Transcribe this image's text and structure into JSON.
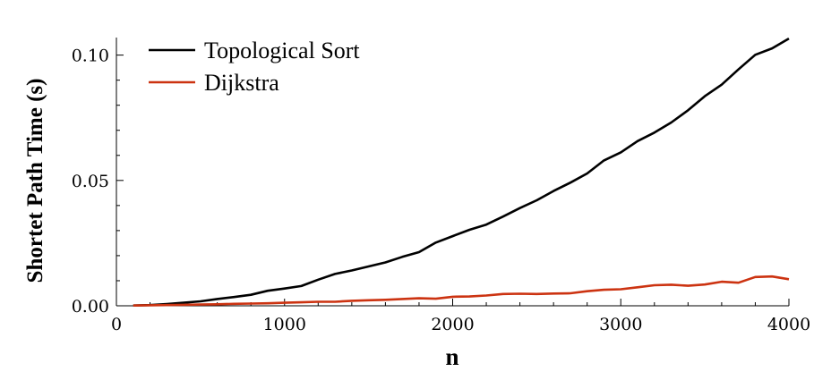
{
  "chart_data": {
    "type": "line",
    "xlabel": "n",
    "ylabel": "Shortet Path Time (s)",
    "xlim": [
      0,
      4000
    ],
    "ylim": [
      0,
      0.107
    ],
    "x_ticks": [
      0,
      1000,
      2000,
      3000,
      4000
    ],
    "x_tick_labels": [
      "0",
      "1000",
      "2000",
      "3000",
      "4000"
    ],
    "y_ticks": [
      0,
      0.05,
      0.1
    ],
    "y_tick_labels": [
      "0.00",
      "0.05",
      "0.10"
    ],
    "grid": false,
    "legend_position": "top-left",
    "x": [
      100,
      200,
      300,
      400,
      500,
      600,
      700,
      800,
      900,
      1000,
      1100,
      1200,
      1300,
      1400,
      1500,
      1600,
      1700,
      1800,
      1900,
      2000,
      2100,
      2200,
      2300,
      2400,
      2500,
      2600,
      2700,
      2800,
      2900,
      3000,
      3100,
      3200,
      3300,
      3400,
      3500,
      3600,
      3700,
      3800,
      3900,
      4000
    ],
    "series": [
      {
        "name": "Topological Sort",
        "color": "#000000",
        "values": [
          0.0001,
          0.0003,
          0.0007,
          0.0012,
          0.0018,
          0.0027,
          0.0035,
          0.0044,
          0.006,
          0.0069,
          0.0079,
          0.0104,
          0.0127,
          0.0141,
          0.0157,
          0.0173,
          0.0195,
          0.0214,
          0.0252,
          0.0278,
          0.0303,
          0.0324,
          0.0356,
          0.039,
          0.0421,
          0.0458,
          0.0491,
          0.0528,
          0.058,
          0.0612,
          0.0657,
          0.0691,
          0.0731,
          0.078,
          0.0836,
          0.0882,
          0.0943,
          0.1001,
          0.1027,
          0.1066
        ]
      },
      {
        "name": "Dijkstra",
        "color": "#cc3311",
        "values": [
          0.0001,
          0.0002,
          0.0003,
          0.0004,
          0.0005,
          0.0006,
          0.0008,
          0.0009,
          0.001,
          0.0012,
          0.0014,
          0.0016,
          0.0016,
          0.002,
          0.0022,
          0.0024,
          0.0027,
          0.003,
          0.0028,
          0.0036,
          0.0037,
          0.0041,
          0.0047,
          0.0048,
          0.0047,
          0.0049,
          0.005,
          0.0058,
          0.0064,
          0.0066,
          0.0074,
          0.0082,
          0.0084,
          0.008,
          0.0085,
          0.0096,
          0.0092,
          0.0115,
          0.0117,
          0.0106
        ]
      }
    ]
  }
}
